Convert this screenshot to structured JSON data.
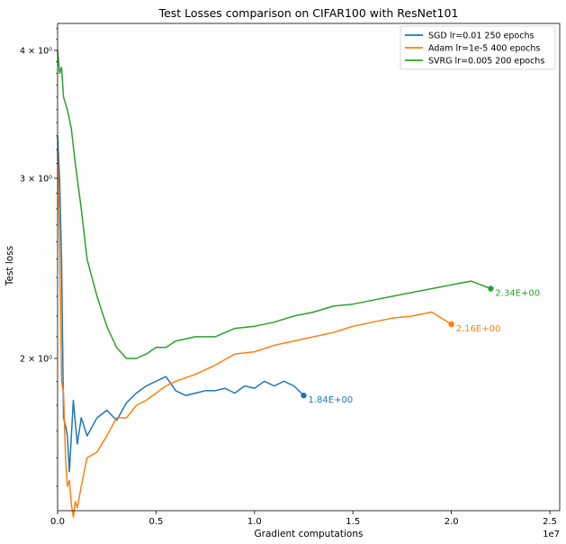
{
  "chart_data": {
    "type": "line",
    "title": "Test Losses comparison on CIFAR100 with ResNet101",
    "xlabel": "Gradient computations",
    "ylabel": "Test loss",
    "x_offset_label": "1e7",
    "xscale": "linear",
    "yscale": "log",
    "xlim": [
      0,
      25500000.0
    ],
    "ylim": [
      1.42,
      4.25
    ],
    "x_ticks": [
      {
        "value": 0,
        "label": "0.0"
      },
      {
        "value": 5000000,
        "label": "0.5"
      },
      {
        "value": 10000000,
        "label": "1.0"
      },
      {
        "value": 15000000,
        "label": "1.5"
      },
      {
        "value": 20000000,
        "label": "2.0"
      },
      {
        "value": 25000000,
        "label": "2.5"
      }
    ],
    "y_ticks": [
      {
        "value": 2,
        "label": "2 × 10⁰"
      },
      {
        "value": 3,
        "label": "3 × 10⁰"
      },
      {
        "value": 4,
        "label": "4 × 10⁰"
      }
    ],
    "legend_position": "top-right",
    "grid": false,
    "series": [
      {
        "name": "SGD lr=0.01 250 epochs",
        "color": "#1f77b4",
        "final_label": "1.84E+00",
        "x": [
          0,
          100000,
          200000,
          300000,
          400000,
          500000,
          600000,
          800000,
          1000000,
          1200000,
          1500000,
          2000000,
          2500000,
          3000000,
          3500000,
          4000000,
          4500000,
          5000000,
          5500000,
          6000000,
          6500000,
          7000000,
          7500000,
          8000000,
          8500000,
          9000000,
          9500000,
          10000000,
          10500000,
          11000000,
          11500000,
          12000000,
          12500000
        ],
        "y": [
          3.3,
          3.0,
          2.5,
          1.75,
          1.72,
          1.68,
          1.55,
          1.82,
          1.65,
          1.75,
          1.68,
          1.75,
          1.78,
          1.74,
          1.81,
          1.85,
          1.88,
          1.9,
          1.92,
          1.86,
          1.84,
          1.85,
          1.86,
          1.86,
          1.87,
          1.85,
          1.88,
          1.87,
          1.9,
          1.88,
          1.9,
          1.88,
          1.84
        ]
      },
      {
        "name": "Adam lr=1e-5 400 epochs",
        "color": "#ff7f0e",
        "final_label": "2.16E+00",
        "x": [
          0,
          100000,
          200000,
          300000,
          400000,
          500000,
          600000,
          700000,
          800000,
          900000,
          1000000,
          1200000,
          1500000,
          2000000,
          2500000,
          3000000,
          3500000,
          4000000,
          4500000,
          5000000,
          5500000,
          6000000,
          7000000,
          8000000,
          9000000,
          10000000,
          11000000,
          12000000,
          13000000,
          14000000,
          15000000,
          16000000,
          17000000,
          18000000,
          19000000,
          20000000
        ],
        "y": [
          3.2,
          2.6,
          1.9,
          1.85,
          1.6,
          1.5,
          1.52,
          1.44,
          1.4,
          1.45,
          1.43,
          1.5,
          1.6,
          1.62,
          1.68,
          1.75,
          1.75,
          1.8,
          1.82,
          1.85,
          1.88,
          1.9,
          1.93,
          1.97,
          2.02,
          2.03,
          2.06,
          2.08,
          2.1,
          2.12,
          2.15,
          2.17,
          2.19,
          2.2,
          2.22,
          2.16
        ]
      },
      {
        "name": "SVRG lr=0.005 200 epochs",
        "color": "#2ca02c",
        "final_label": "2.34E+00",
        "x": [
          0,
          100000,
          200000,
          300000,
          500000,
          700000,
          900000,
          1200000,
          1500000,
          2000000,
          2500000,
          3000000,
          3500000,
          4000000,
          4500000,
          5000000,
          5500000,
          6000000,
          7000000,
          8000000,
          9000000,
          10000000,
          11000000,
          12000000,
          13000000,
          14000000,
          15000000,
          16000000,
          17000000,
          18000000,
          19000000,
          20000000,
          21000000,
          22000000
        ],
        "y": [
          4.0,
          3.8,
          3.85,
          3.6,
          3.5,
          3.35,
          3.1,
          2.8,
          2.5,
          2.3,
          2.15,
          2.05,
          2.0,
          2.0,
          2.02,
          2.05,
          2.05,
          2.08,
          2.1,
          2.1,
          2.14,
          2.15,
          2.17,
          2.2,
          2.22,
          2.25,
          2.26,
          2.28,
          2.3,
          2.32,
          2.34,
          2.36,
          2.38,
          2.34
        ]
      }
    ]
  }
}
